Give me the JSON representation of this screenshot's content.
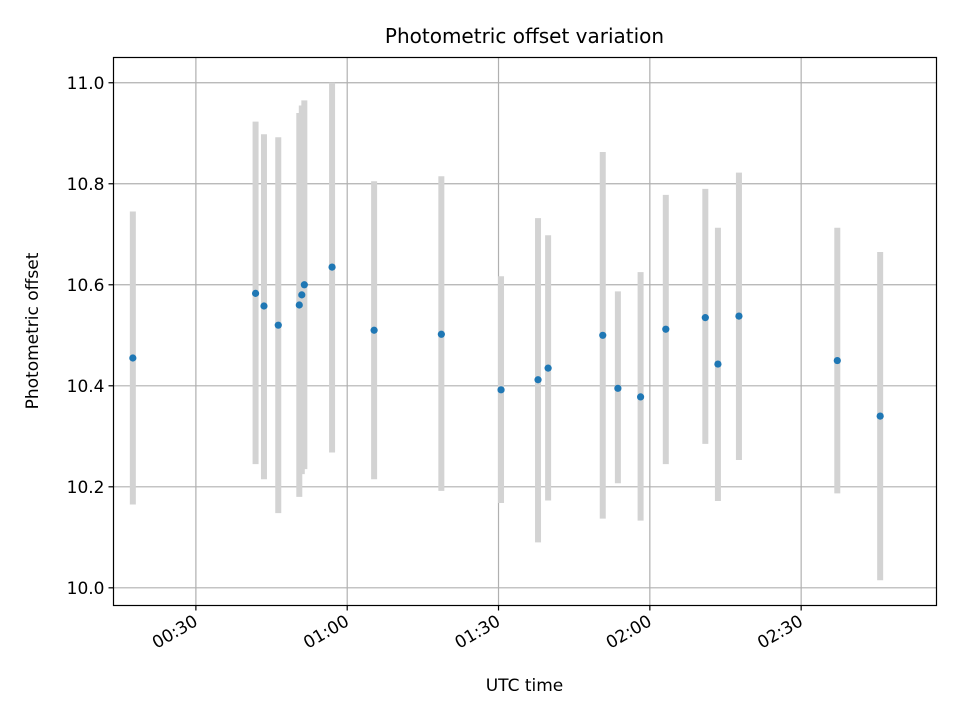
{
  "chart_data": {
    "type": "scatter",
    "title": "Photometric offset variation",
    "xlabel": "UTC time",
    "ylabel": "Photometric offset",
    "x_unit": "UTC time (HH:MM)",
    "xlim": [
      "00:13:40",
      "02:56:50"
    ],
    "ylim": [
      9.965,
      11.05
    ],
    "x_ticks": [
      "00:30",
      "01:00",
      "01:30",
      "02:00",
      "02:30"
    ],
    "y_ticks": [
      "10.0",
      "10.2",
      "10.4",
      "10.6",
      "10.8",
      "11.0"
    ],
    "grid": true,
    "marker_color": "#1f77b4",
    "errorbar_color": "#d3d3d3",
    "points": [
      {
        "t": "00:17:30",
        "y": 10.455,
        "lo": 10.165,
        "hi": 10.745
      },
      {
        "t": "00:41:50",
        "y": 10.583,
        "lo": 10.245,
        "hi": 10.923
      },
      {
        "t": "00:43:30",
        "y": 10.558,
        "lo": 10.215,
        "hi": 10.898
      },
      {
        "t": "00:46:20",
        "y": 10.52,
        "lo": 10.148,
        "hi": 10.892
      },
      {
        "t": "00:50:30",
        "y": 10.56,
        "lo": 10.18,
        "hi": 10.94
      },
      {
        "t": "00:51:00",
        "y": 10.58,
        "lo": 10.225,
        "hi": 10.955
      },
      {
        "t": "00:51:30",
        "y": 10.6,
        "lo": 10.235,
        "hi": 10.965
      },
      {
        "t": "00:57:00",
        "y": 10.635,
        "lo": 10.268,
        "hi": 11.0
      },
      {
        "t": "01:05:20",
        "y": 10.51,
        "lo": 10.215,
        "hi": 10.805
      },
      {
        "t": "01:18:40",
        "y": 10.502,
        "lo": 10.192,
        "hi": 10.815
      },
      {
        "t": "01:30:30",
        "y": 10.392,
        "lo": 10.168,
        "hi": 10.617
      },
      {
        "t": "01:37:50",
        "y": 10.412,
        "lo": 10.09,
        "hi": 10.732
      },
      {
        "t": "01:39:50",
        "y": 10.435,
        "lo": 10.173,
        "hi": 10.698
      },
      {
        "t": "01:50:40",
        "y": 10.5,
        "lo": 10.137,
        "hi": 10.863
      },
      {
        "t": "01:53:40",
        "y": 10.395,
        "lo": 10.207,
        "hi": 10.587
      },
      {
        "t": "01:58:10",
        "y": 10.378,
        "lo": 10.133,
        "hi": 10.625
      },
      {
        "t": "02:03:10",
        "y": 10.512,
        "lo": 10.245,
        "hi": 10.778
      },
      {
        "t": "02:11:00",
        "y": 10.535,
        "lo": 10.285,
        "hi": 10.79
      },
      {
        "t": "02:13:30",
        "y": 10.443,
        "lo": 10.172,
        "hi": 10.713
      },
      {
        "t": "02:17:40",
        "y": 10.538,
        "lo": 10.253,
        "hi": 10.822
      },
      {
        "t": "02:37:10",
        "y": 10.45,
        "lo": 10.187,
        "hi": 10.713
      },
      {
        "t": "02:45:40",
        "y": 10.34,
        "lo": 10.015,
        "hi": 10.665
      }
    ]
  }
}
